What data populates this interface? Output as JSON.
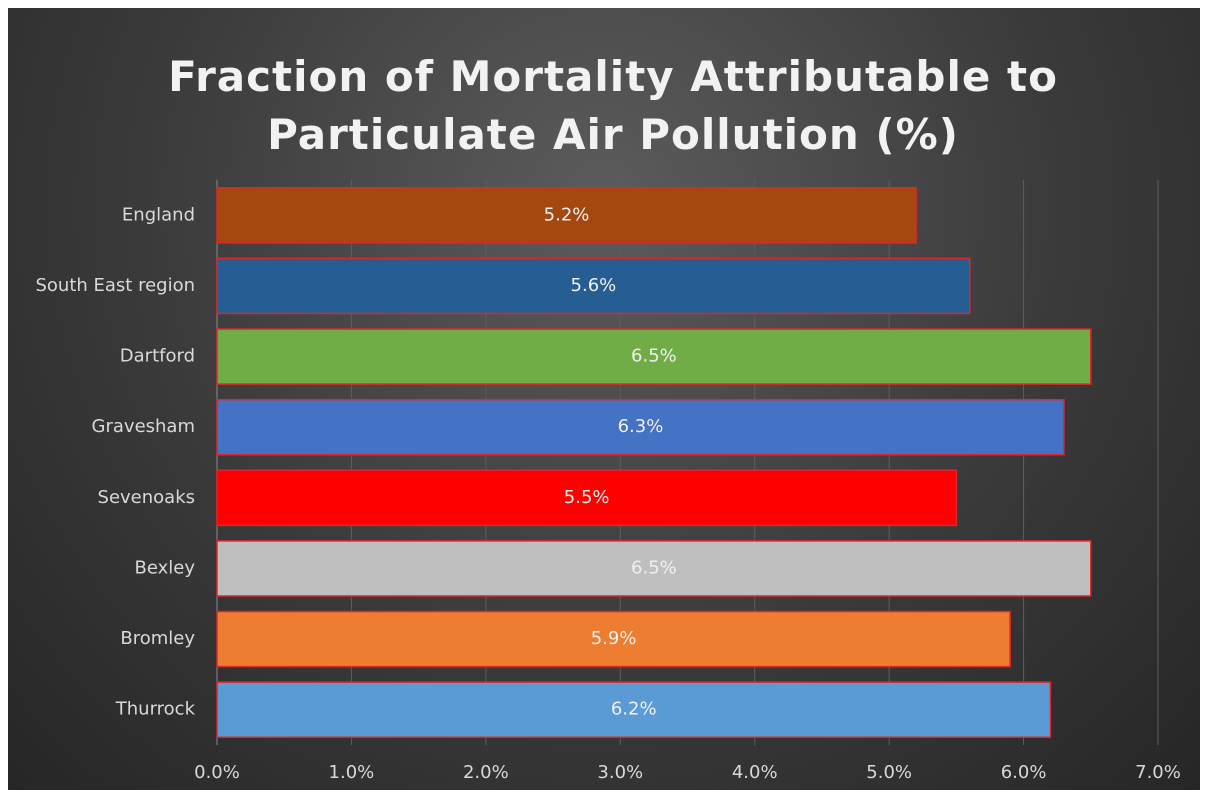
{
  "chart_data": {
    "type": "hbar",
    "title": "Fraction of Mortality Attributable to Particulate Air Pollution (%)",
    "categories": [
      "England",
      "South East region",
      "Dartford",
      "Gravesham",
      "Sevenoaks",
      "Bexley",
      "Bromley",
      "Thurrock"
    ],
    "values": [
      5.2,
      5.6,
      6.5,
      6.3,
      5.5,
      6.5,
      5.9,
      6.2
    ],
    "value_labels": [
      "5.2%",
      "5.6%",
      "6.5%",
      "6.3%",
      "5.5%",
      "6.5%",
      "5.9%",
      "6.2%"
    ],
    "colors": [
      "#a5480f",
      "#265d92",
      "#70ad47",
      "#4472c4",
      "#ff0000",
      "#bfbfbf",
      "#ed7d31",
      "#5b9bd5"
    ],
    "xlim": [
      0,
      7
    ],
    "xticks": [
      {
        "value": 0,
        "label": "0.0%"
      },
      {
        "value": 1,
        "label": "1.0%"
      },
      {
        "value": 2,
        "label": "2.0%"
      },
      {
        "value": 3,
        "label": "3.0%"
      },
      {
        "value": 4,
        "label": "4.0%"
      },
      {
        "value": 5,
        "label": "5.0%"
      },
      {
        "value": 6,
        "label": "6.0%"
      },
      {
        "value": 7,
        "label": "7.0%"
      }
    ],
    "grid": true
  }
}
